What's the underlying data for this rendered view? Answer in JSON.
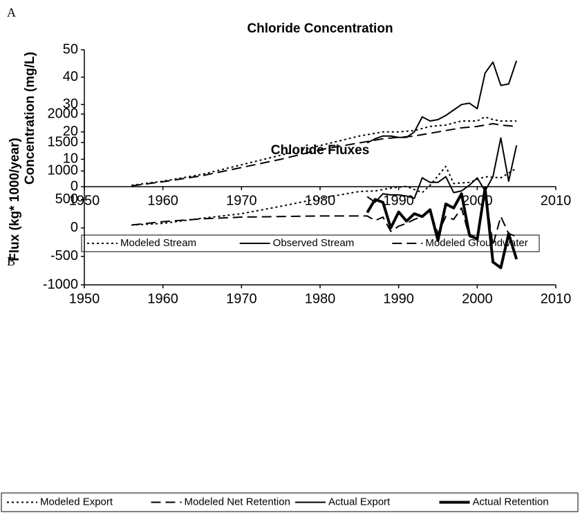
{
  "chart_data": [
    {
      "type": "line",
      "panel_label": "A",
      "title": "Chloride Concentration",
      "y_label": "Concentration (mg/L)",
      "xlim": [
        1950,
        2010
      ],
      "xticks": [
        1950,
        1960,
        1970,
        1980,
        1990,
        2000,
        2010
      ],
      "ylim": [
        0,
        50
      ],
      "yticks": [
        0,
        10,
        20,
        30,
        40,
        50
      ],
      "legend": "bottom",
      "series": [
        {
          "name": "Modeled Stream",
          "color": "#000000",
          "dash": "dotted",
          "width": 2,
          "x": [
            1956,
            1960,
            1965,
            1970,
            1975,
            1980,
            1985,
            1988,
            1990,
            1992,
            1994,
            1996,
            1998,
            2000,
            2001,
            2002,
            2003,
            2005
          ],
          "values": [
            0.5,
            2,
            4.5,
            8,
            11.5,
            15,
            18.5,
            20,
            20,
            20.5,
            22,
            22.5,
            24,
            24,
            25.5,
            24.5,
            24,
            24
          ]
        },
        {
          "name": "Observed Stream",
          "color": "#000000",
          "dash": "solid",
          "width": 2,
          "x": [
            1986,
            1987,
            1988,
            1989,
            1990,
            1991,
            1992,
            1993,
            1994,
            1995,
            1996,
            1997,
            1998,
            1999,
            2000,
            2001,
            2002,
            2003,
            2004,
            2005
          ],
          "values": [
            16,
            17.5,
            18.5,
            18.5,
            18,
            18,
            20,
            25.5,
            24,
            24.5,
            26,
            28,
            30,
            30.5,
            28.5,
            41.5,
            45.5,
            37,
            37.5,
            46
          ]
        },
        {
          "name": "Modeled Groundwater",
          "color": "#000000",
          "dash": "dashed",
          "width": 2,
          "x": [
            1956,
            1960,
            1965,
            1970,
            1975,
            1980,
            1985,
            1988,
            1990,
            1992,
            1994,
            1996,
            1998,
            2000,
            2001,
            2002,
            2003,
            2005
          ],
          "values": [
            0.3,
            1.8,
            4,
            7,
            10,
            13.5,
            16,
            17.5,
            18,
            18.5,
            19.5,
            20.5,
            21.5,
            22,
            22.5,
            23,
            22.5,
            22
          ]
        }
      ]
    },
    {
      "type": "line",
      "panel_label": "B",
      "title": "Chloride Fluxes",
      "y_label": "Flux (kg* 1000/year)",
      "xlim": [
        1950,
        2010
      ],
      "xticks": [
        1950,
        1960,
        1970,
        1980,
        1990,
        2000,
        2010
      ],
      "ylim": [
        -1000,
        2000
      ],
      "yticks": [
        -1000,
        -500,
        0,
        500,
        1000,
        1500,
        2000
      ],
      "legend": "bottom",
      "series": [
        {
          "name": "Modeled Export",
          "color": "#000000",
          "dash": "dotted",
          "width": 2,
          "x": [
            1956,
            1960,
            1965,
            1970,
            1975,
            1980,
            1985,
            1987,
            1989,
            1991,
            1993,
            1994,
            1996,
            1997,
            1999,
            2001,
            2003,
            2005
          ],
          "values": [
            50,
            80,
            170,
            250,
            380,
            520,
            640,
            650,
            700,
            730,
            620,
            750,
            1080,
            780,
            800,
            900,
            880,
            1050
          ]
        },
        {
          "name": "Modeled Net Retention",
          "color": "#000000",
          "dash": "dashed",
          "width": 2,
          "x": [
            1956,
            1960,
            1965,
            1970,
            1980,
            1986,
            1987,
            1988,
            1989,
            1990,
            1991,
            1992,
            1993,
            1994,
            1995,
            1996,
            1997,
            1998,
            1999,
            2000,
            2001,
            2002,
            2003,
            2004,
            2005
          ],
          "values": [
            50,
            110,
            160,
            190,
            210,
            210,
            130,
            190,
            -60,
            30,
            80,
            150,
            200,
            300,
            -100,
            200,
            150,
            350,
            -150,
            -200,
            650,
            -300,
            200,
            -100,
            -150
          ]
        },
        {
          "name": "Actual Export",
          "color": "#000000",
          "dash": "solid",
          "width": 2,
          "x": [
            1986,
            1987,
            1988,
            1989,
            1990,
            1991,
            1992,
            1993,
            1994,
            1995,
            1996,
            1997,
            1998,
            1999,
            2000,
            2001,
            2002,
            2003,
            2004,
            2005
          ],
          "values": [
            550,
            450,
            600,
            580,
            580,
            560,
            520,
            880,
            800,
            800,
            900,
            620,
            650,
            750,
            880,
            650,
            900,
            1580,
            820,
            1450
          ]
        },
        {
          "name": "Actual Retention",
          "color": "#000000",
          "dash": "solid",
          "width": 4,
          "x": [
            1986,
            1987,
            1988,
            1989,
            1990,
            1991,
            1992,
            1993,
            1994,
            1995,
            1996,
            1997,
            1998,
            1999,
            2000,
            2001,
            2002,
            2003,
            2004,
            2005
          ],
          "values": [
            270,
            500,
            450,
            0,
            280,
            120,
            250,
            200,
            320,
            -220,
            420,
            350,
            600,
            -120,
            -200,
            700,
            -600,
            -700,
            -100,
            -550
          ]
        }
      ]
    }
  ]
}
